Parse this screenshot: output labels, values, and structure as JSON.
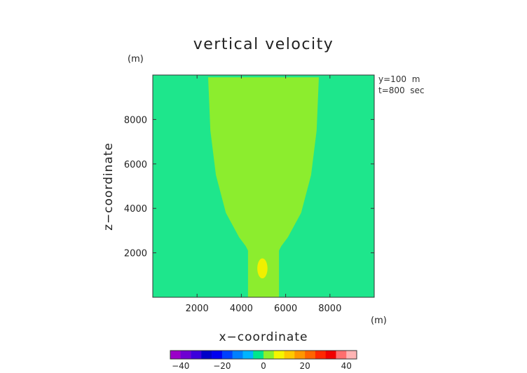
{
  "chart_data": {
    "type": "heatmap",
    "title": "vertical velocity",
    "xlabel": "x−coordinate",
    "ylabel": "z−coordinate",
    "x_unit": "(m)",
    "y_unit": "(m)",
    "annotations": [
      "y=100  m",
      "t=800  sec"
    ],
    "xlim": [
      0,
      10000
    ],
    "ylim": [
      0,
      10000
    ],
    "x_ticks": [
      2000,
      4000,
      6000,
      8000
    ],
    "y_ticks": [
      2000,
      4000,
      6000,
      8000
    ],
    "x_tick_labels": [
      "2000",
      "4000",
      "6000",
      "8000"
    ],
    "y_tick_labels": [
      "2000",
      "4000",
      "6000",
      "8000"
    ],
    "grid": false,
    "colorbar": {
      "range": [
        -45,
        45
      ],
      "ticks": [
        -40,
        -20,
        0,
        20,
        40
      ],
      "tick_labels": [
        "−40",
        "−20",
        "0",
        "20",
        "40"
      ],
      "bins": [
        {
          "from": -45,
          "to": -40,
          "color": "#9b00c8"
        },
        {
          "from": -40,
          "to": -35,
          "color": "#6e00d2"
        },
        {
          "from": -35,
          "to": -30,
          "color": "#3c00dc"
        },
        {
          "from": -30,
          "to": -25,
          "color": "#0000c8"
        },
        {
          "from": -25,
          "to": -20,
          "color": "#0000f0"
        },
        {
          "from": -20,
          "to": -15,
          "color": "#0040ff"
        },
        {
          "from": -15,
          "to": -10,
          "color": "#0080ff"
        },
        {
          "from": -10,
          "to": -5,
          "color": "#00b4ff"
        },
        {
          "from": -5,
          "to": 0,
          "color": "#00e68c"
        },
        {
          "from": 0,
          "to": 5,
          "color": "#8cf02c"
        },
        {
          "from": 5,
          "to": 10,
          "color": "#f5f500"
        },
        {
          "from": 10,
          "to": 15,
          "color": "#ffc800"
        },
        {
          "from": 15,
          "to": 20,
          "color": "#ff9600"
        },
        {
          "from": 20,
          "to": 25,
          "color": "#ff6400"
        },
        {
          "from": 25,
          "to": 30,
          "color": "#ff2800"
        },
        {
          "from": 30,
          "to": 35,
          "color": "#f00000"
        },
        {
          "from": 35,
          "to": 40,
          "color": "#ff6e6e"
        },
        {
          "from": 40,
          "to": 45,
          "color": "#ffb4b4"
        }
      ]
    },
    "field": {
      "background": {
        "range": "-5 to 0",
        "color": "#1ee68c"
      },
      "regions": [
        {
          "name": "plume",
          "range": "0 to 5",
          "color": "#8ced2e",
          "outline": [
            [
              2500,
              9900
            ],
            [
              7500,
              9900
            ],
            [
              7400,
              7500
            ],
            [
              7150,
              5500
            ],
            [
              6700,
              3800
            ],
            [
              6100,
              2700
            ],
            [
              5800,
              2300
            ],
            [
              5700,
              2100
            ],
            [
              5700,
              0
            ],
            [
              4300,
              0
            ],
            [
              4300,
              2100
            ],
            [
              4200,
              2300
            ],
            [
              3900,
              2700
            ],
            [
              3300,
              3800
            ],
            [
              2850,
              5500
            ],
            [
              2600,
              7500
            ]
          ]
        },
        {
          "name": "core",
          "range": "5 to 10",
          "color": "#f0f000",
          "ellipse": {
            "center": [
              4950,
              1300
            ],
            "rx": 230,
            "ry": 450
          }
        }
      ]
    }
  }
}
